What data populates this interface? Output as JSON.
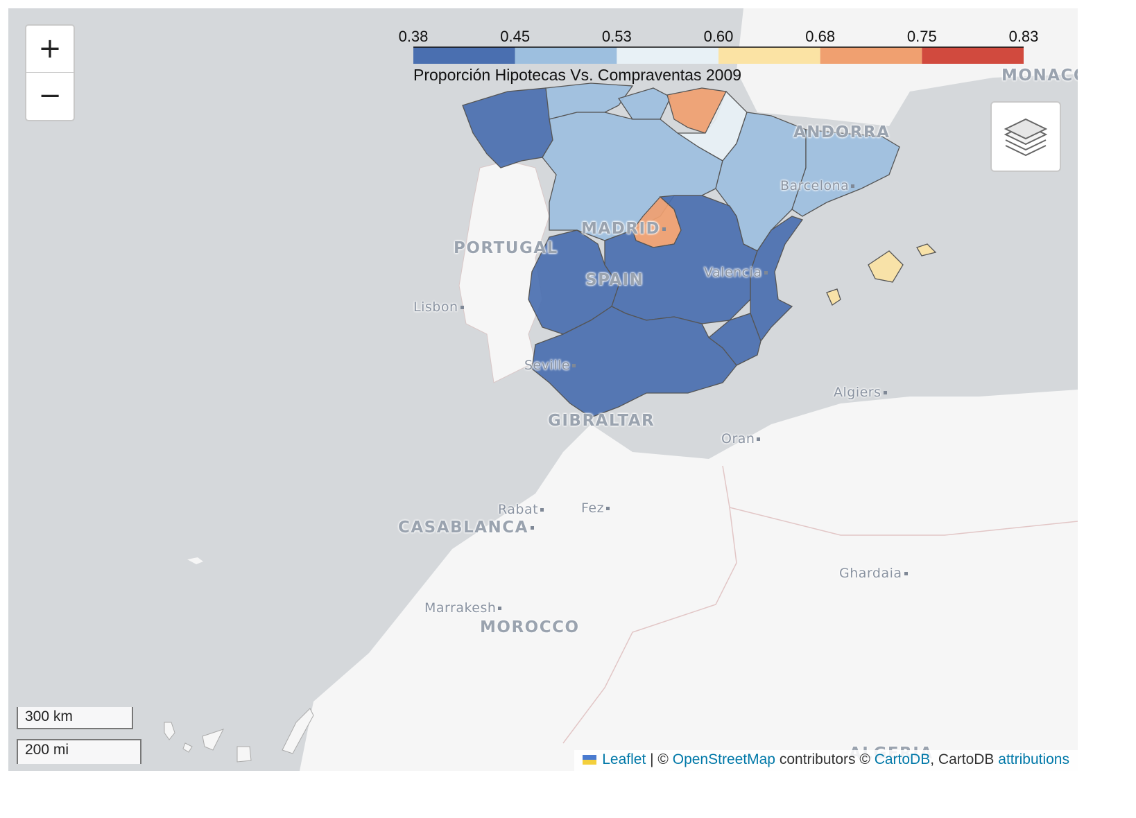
{
  "map": {
    "legend": {
      "title": "Proporción Hipotecas Vs. Compraventas 2009",
      "ticks": [
        "0.38",
        "0.45",
        "0.53",
        "0.60",
        "0.68",
        "0.75",
        "0.83"
      ],
      "colors": [
        "#4a6fb0",
        "#9dbfdf",
        "#e8f1f6",
        "#fbe3a4",
        "#f0a070",
        "#d14a3e"
      ]
    },
    "places": {
      "monaco": "MONACO",
      "andorra": "ANDORRA",
      "barcelona": "Barcelona",
      "madrid": "MADRID",
      "portugal": "PORTUGAL",
      "spain": "SPAIN",
      "valencia": "Valencia",
      "lisbon": "Lisbon",
      "seville": "Seville",
      "gibraltar": "GIBRALTAR",
      "algiers": "Algiers",
      "oran": "Oran",
      "rabat": "Rabat",
      "fez": "Fez",
      "casablanca": "CASABLANCA",
      "ghardaia": "Ghardaia",
      "marrakesh": "Marrakesh",
      "morocco": "MOROCCO",
      "algeria": "ALGERIA"
    },
    "region_values": {
      "galicia": 0.42,
      "asturias_cantabria": 0.49,
      "pais_vasco": 0.46,
      "navarra": 0.72,
      "la_rioja": 0.57,
      "castilla_leon": 0.5,
      "aragon": 0.51,
      "cataluna": 0.5,
      "madrid": 0.73,
      "extremadura": 0.43,
      "castilla_la_mancha": 0.43,
      "valencia": 0.42,
      "murcia": 0.42,
      "andalucia": 0.42,
      "baleares": 0.63
    },
    "controls": {
      "zoom_in": "+",
      "zoom_out": "−",
      "layers_icon": "layers-icon"
    },
    "scale": {
      "km": "300 km",
      "mi": "200 mi"
    },
    "attribution": {
      "leaflet": "Leaflet",
      "sep": " | © ",
      "osm": "OpenStreetMap",
      "contributors": " contributors © ",
      "cartodb_link": "CartoDB",
      "cartodb_text": ", CartoDB ",
      "attributions": "attributions"
    }
  }
}
